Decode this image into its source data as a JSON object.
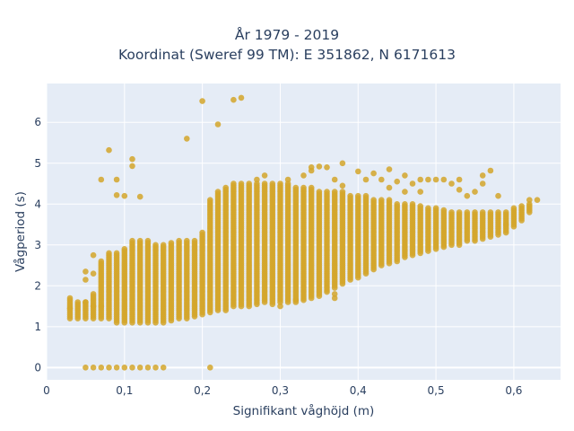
{
  "chart_data": {
    "type": "scatter",
    "title_line1": "År 1979 - 2019",
    "title_line2": "Koordinat (Sweref 99 TM): E 351862, N 6171613",
    "xlabel": "Signifikant våghöjd (m)",
    "ylabel": "Vågperiod (s)",
    "xlim": [
      0,
      0.66
    ],
    "ylim": [
      -0.3,
      6.95
    ],
    "xticks": [
      0,
      0.1,
      0.2,
      0.3,
      0.4,
      0.5,
      0.6
    ],
    "xtick_labels": [
      "0",
      "0,1",
      "0,2",
      "0,3",
      "0,4",
      "0,5",
      "0,6"
    ],
    "yticks": [
      0,
      1,
      2,
      3,
      4,
      5,
      6
    ],
    "ytick_labels": [
      "0",
      "1",
      "2",
      "3",
      "4",
      "5",
      "6"
    ],
    "grid": true,
    "colors": {
      "marker": "#d4a62a",
      "plot_bg": "#e5ecf6",
      "grid": "#ffffff",
      "text": "#2a3f5f"
    },
    "series": [
      {
        "columns": [
          [
            0.03,
            1.2,
            1.7
          ],
          [
            0.04,
            1.2,
            1.6
          ],
          [
            0.05,
            1.2,
            1.6
          ],
          [
            0.06,
            1.2,
            1.8
          ],
          [
            0.07,
            1.2,
            2.6
          ],
          [
            0.08,
            1.2,
            2.8
          ],
          [
            0.09,
            1.1,
            2.8
          ],
          [
            0.1,
            1.1,
            2.9
          ],
          [
            0.11,
            1.1,
            3.1
          ],
          [
            0.12,
            1.1,
            3.1
          ],
          [
            0.13,
            1.1,
            3.1
          ],
          [
            0.14,
            1.1,
            3.0
          ],
          [
            0.15,
            1.1,
            3.0
          ],
          [
            0.16,
            1.15,
            3.05
          ],
          [
            0.17,
            1.2,
            3.1
          ],
          [
            0.18,
            1.2,
            3.1
          ],
          [
            0.19,
            1.25,
            3.1
          ],
          [
            0.2,
            1.3,
            3.3
          ],
          [
            0.21,
            1.35,
            4.1
          ],
          [
            0.22,
            1.4,
            4.3
          ],
          [
            0.23,
            1.4,
            4.4
          ],
          [
            0.24,
            1.5,
            4.5
          ],
          [
            0.25,
            1.5,
            4.5
          ],
          [
            0.26,
            1.5,
            4.5
          ],
          [
            0.27,
            1.55,
            4.5
          ],
          [
            0.28,
            1.6,
            4.5
          ],
          [
            0.29,
            1.6,
            4.5
          ],
          [
            0.3,
            1.6,
            4.5
          ],
          [
            0.31,
            1.6,
            4.5
          ],
          [
            0.32,
            1.6,
            4.4
          ],
          [
            0.33,
            1.65,
            4.4
          ],
          [
            0.34,
            1.7,
            4.4
          ],
          [
            0.35,
            1.75,
            4.3
          ],
          [
            0.36,
            1.85,
            4.3
          ],
          [
            0.37,
            1.95,
            4.3
          ],
          [
            0.38,
            2.05,
            4.3
          ],
          [
            0.39,
            2.15,
            4.2
          ],
          [
            0.4,
            2.2,
            4.2
          ],
          [
            0.41,
            2.3,
            4.2
          ],
          [
            0.42,
            2.4,
            4.1
          ],
          [
            0.43,
            2.5,
            4.1
          ],
          [
            0.44,
            2.55,
            4.1
          ],
          [
            0.45,
            2.6,
            4.0
          ],
          [
            0.46,
            2.7,
            4.0
          ],
          [
            0.47,
            2.75,
            4.0
          ],
          [
            0.48,
            2.8,
            3.95
          ],
          [
            0.49,
            2.85,
            3.9
          ],
          [
            0.5,
            2.9,
            3.9
          ],
          [
            0.51,
            2.95,
            3.85
          ],
          [
            0.52,
            3.0,
            3.8
          ],
          [
            0.53,
            3.0,
            3.8
          ],
          [
            0.54,
            3.1,
            3.8
          ],
          [
            0.55,
            3.1,
            3.8
          ],
          [
            0.56,
            3.15,
            3.8
          ],
          [
            0.57,
            3.2,
            3.8
          ],
          [
            0.58,
            3.25,
            3.8
          ],
          [
            0.59,
            3.3,
            3.8
          ],
          [
            0.6,
            3.45,
            3.9
          ],
          [
            0.61,
            3.6,
            3.95
          ],
          [
            0.62,
            3.8,
            4.0
          ]
        ],
        "zero_period_points": [
          [
            0.05,
            0
          ],
          [
            0.06,
            0
          ],
          [
            0.07,
            0
          ],
          [
            0.08,
            0
          ],
          [
            0.09,
            0
          ],
          [
            0.1,
            0
          ],
          [
            0.11,
            0
          ],
          [
            0.12,
            0
          ],
          [
            0.13,
            0
          ],
          [
            0.14,
            0
          ],
          [
            0.15,
            0
          ],
          [
            0.21,
            0
          ]
        ],
        "outliers": [
          [
            0.03,
            1.45
          ],
          [
            0.05,
            2.35
          ],
          [
            0.05,
            2.15
          ],
          [
            0.06,
            2.75
          ],
          [
            0.06,
            2.3
          ],
          [
            0.06,
            1.5
          ],
          [
            0.07,
            4.6
          ],
          [
            0.08,
            5.32
          ],
          [
            0.09,
            4.6
          ],
          [
            0.09,
            4.22
          ],
          [
            0.1,
            4.2
          ],
          [
            0.11,
            5.1
          ],
          [
            0.11,
            4.93
          ],
          [
            0.12,
            4.18
          ],
          [
            0.18,
            5.6
          ],
          [
            0.2,
            6.52
          ],
          [
            0.22,
            5.95
          ],
          [
            0.24,
            6.55
          ],
          [
            0.25,
            6.6
          ],
          [
            0.27,
            4.6
          ],
          [
            0.28,
            4.7
          ],
          [
            0.31,
            4.6
          ],
          [
            0.33,
            4.7
          ],
          [
            0.34,
            4.9
          ],
          [
            0.34,
            4.82
          ],
          [
            0.35,
            4.92
          ],
          [
            0.36,
            4.9
          ],
          [
            0.37,
            4.6
          ],
          [
            0.38,
            5.0
          ],
          [
            0.38,
            4.45
          ],
          [
            0.4,
            4.8
          ],
          [
            0.41,
            4.6
          ],
          [
            0.42,
            4.75
          ],
          [
            0.43,
            4.6
          ],
          [
            0.44,
            4.85
          ],
          [
            0.44,
            4.4
          ],
          [
            0.45,
            4.55
          ],
          [
            0.46,
            4.7
          ],
          [
            0.46,
            4.3
          ],
          [
            0.47,
            4.5
          ],
          [
            0.48,
            4.6
          ],
          [
            0.48,
            4.3
          ],
          [
            0.49,
            4.6
          ],
          [
            0.5,
            4.6
          ],
          [
            0.51,
            4.6
          ],
          [
            0.52,
            4.5
          ],
          [
            0.53,
            4.35
          ],
          [
            0.54,
            4.2
          ],
          [
            0.56,
            4.7
          ],
          [
            0.57,
            4.82
          ],
          [
            0.58,
            4.2
          ],
          [
            0.59,
            3.5
          ],
          [
            0.63,
            4.1
          ],
          [
            0.62,
            4.1
          ],
          [
            0.29,
            1.55
          ],
          [
            0.3,
            1.5
          ],
          [
            0.32,
            1.65
          ],
          [
            0.37,
            1.8
          ],
          [
            0.37,
            1.7
          ],
          [
            0.05,
            1.6
          ],
          [
            0.07,
            1.5
          ],
          [
            0.53,
            4.6
          ],
          [
            0.55,
            4.3
          ],
          [
            0.56,
            4.5
          ]
        ]
      }
    ]
  }
}
